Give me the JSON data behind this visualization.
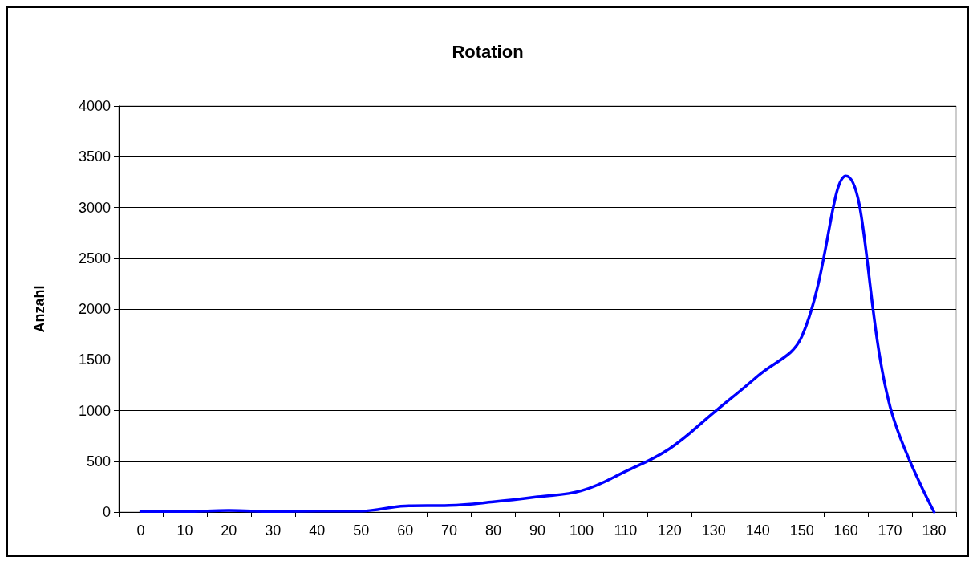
{
  "chart_data": {
    "type": "line",
    "title": "Rotation",
    "ylabel": "Anzahl",
    "categories": [
      "0",
      "10",
      "20",
      "30",
      "40",
      "50",
      "60",
      "70",
      "80",
      "90",
      "100",
      "110",
      "120",
      "130",
      "140",
      "150",
      "160",
      "170",
      "180"
    ],
    "series": [
      {
        "color": "#0000ff",
        "values": [
          5,
          5,
          15,
          5,
          10,
          10,
          60,
          65,
          100,
          150,
          210,
          400,
          625,
          980,
          1340,
          1730,
          3310,
          1040,
          0
        ]
      }
    ],
    "ylim": [
      0,
      4000
    ],
    "yticks": [
      0,
      500,
      1000,
      1500,
      2000,
      2500,
      3000,
      3500,
      4000
    ],
    "grid": "y",
    "marker": "none",
    "line_style": "solid"
  }
}
